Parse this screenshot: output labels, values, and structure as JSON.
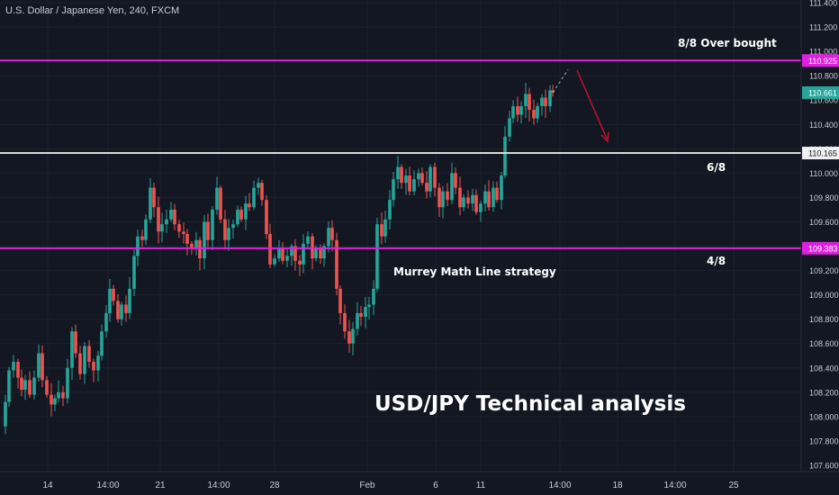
{
  "header": {
    "symbol": "U.S. Dollar / Japanese Yen, 240, FXCM"
  },
  "annotations": {
    "overbought": "8/8  Over bought",
    "six_eighths": "6/8",
    "four_eighths": "4/8",
    "strategy": "Murrey Math Line strategy",
    "title": "USD/JPY Technical analysis"
  },
  "colors": {
    "background": "#131722",
    "up_candle": "#26a69a",
    "down_candle": "#ef5350",
    "murrey_magenta": "#e020e0",
    "murrey_white": "#d8d8d8",
    "arrow": "#c0142c",
    "current_price_badge": "#26a69a"
  },
  "chart_data": {
    "type": "candlestick",
    "title": "USD/JPY Technical analysis",
    "ylim": [
      107.5,
      111.45
    ],
    "y_ticks": [
      "111.400",
      "111.200",
      "111.000",
      "110.800",
      "110.600",
      "110.400",
      "110.200",
      "110.000",
      "109.800",
      "109.600",
      "109.400",
      "109.200",
      "109.000",
      "108.800",
      "108.600",
      "108.400",
      "108.200",
      "108.000",
      "107.800",
      "107.600"
    ],
    "x_ticks": [
      "14",
      "14:00",
      "21",
      "14:00",
      "28",
      "Feb",
      "6",
      "11",
      "14:00",
      "18",
      "14:00",
      "25"
    ],
    "price_badges": {
      "overbought": "110.925",
      "current": "110.661",
      "six_eighths": "110.165",
      "four_eighths": "109.383"
    },
    "murrey_lines": [
      {
        "label": "8/8  Over bought",
        "value": 110.925,
        "color": "#e020e0"
      },
      {
        "label": "6/8",
        "value": 110.165,
        "color": "#d8d8d8"
      },
      {
        "label": "4/8",
        "value": 109.383,
        "color": "#e020e0"
      }
    ],
    "current_price": 110.661,
    "close_path": [
      [
        0,
        107.92
      ],
      [
        6,
        108.12
      ],
      [
        10,
        108.38
      ],
      [
        15,
        108.45
      ],
      [
        20,
        108.32
      ],
      [
        24,
        108.22
      ],
      [
        28,
        108.3
      ],
      [
        33,
        108.18
      ],
      [
        38,
        108.32
      ],
      [
        43,
        108.52
      ],
      [
        47,
        108.3
      ],
      [
        52,
        108.18
      ],
      [
        57,
        108.1
      ],
      [
        61,
        108.15
      ],
      [
        65,
        108.2
      ],
      [
        70,
        108.15
      ],
      [
        75,
        108.4
      ],
      [
        80,
        108.7
      ],
      [
        84,
        108.52
      ],
      [
        89,
        108.35
      ],
      [
        94,
        108.58
      ],
      [
        99,
        108.45
      ],
      [
        104,
        108.38
      ],
      [
        109,
        108.5
      ],
      [
        113,
        108.7
      ],
      [
        118,
        108.85
      ],
      [
        122,
        109.05
      ],
      [
        126,
        108.95
      ],
      [
        131,
        108.8
      ],
      [
        135,
        108.92
      ],
      [
        140,
        108.85
      ],
      [
        144,
        109.05
      ],
      [
        149,
        109.32
      ],
      [
        153,
        109.48
      ],
      [
        158,
        109.45
      ],
      [
        162,
        109.62
      ],
      [
        167,
        109.88
      ],
      [
        171,
        109.72
      ],
      [
        176,
        109.52
      ],
      [
        180,
        109.58
      ],
      [
        185,
        109.62
      ],
      [
        190,
        109.7
      ],
      [
        194,
        109.58
      ],
      [
        199,
        109.52
      ],
      [
        204,
        109.5
      ],
      [
        208,
        109.42
      ],
      [
        213,
        109.38
      ],
      [
        218,
        109.45
      ],
      [
        222,
        109.3
      ],
      [
        227,
        109.6
      ],
      [
        231,
        109.45
      ],
      [
        236,
        109.7
      ],
      [
        241,
        109.88
      ],
      [
        245,
        109.62
      ],
      [
        250,
        109.45
      ],
      [
        254,
        109.55
      ],
      [
        259,
        109.58
      ],
      [
        264,
        109.7
      ],
      [
        268,
        109.62
      ],
      [
        273,
        109.75
      ],
      [
        277,
        109.72
      ],
      [
        282,
        109.88
      ],
      [
        287,
        109.92
      ],
      [
        291,
        109.78
      ],
      [
        296,
        109.5
      ],
      [
        300,
        109.25
      ],
      [
        305,
        109.3
      ],
      [
        310,
        109.38
      ],
      [
        314,
        109.28
      ],
      [
        319,
        109.32
      ],
      [
        324,
        109.4
      ],
      [
        328,
        109.28
      ],
      [
        333,
        109.25
      ],
      [
        337,
        109.42
      ],
      [
        342,
        109.48
      ],
      [
        347,
        109.3
      ],
      [
        351,
        109.38
      ],
      [
        356,
        109.3
      ],
      [
        360,
        109.4
      ],
      [
        365,
        109.55
      ],
      [
        369,
        109.45
      ],
      [
        374,
        109.05
      ],
      [
        378,
        108.85
      ],
      [
        383,
        108.7
      ],
      [
        388,
        108.6
      ],
      [
        392,
        108.72
      ],
      [
        397,
        108.85
      ],
      [
        401,
        108.82
      ],
      [
        406,
        108.9
      ],
      [
        410,
        108.92
      ],
      [
        415,
        109.05
      ],
      [
        419,
        109.58
      ],
      [
        424,
        109.48
      ],
      [
        428,
        109.62
      ],
      [
        433,
        109.78
      ],
      [
        437,
        109.95
      ],
      [
        442,
        110.05
      ],
      [
        446,
        109.92
      ],
      [
        451,
        109.98
      ],
      [
        455,
        109.85
      ],
      [
        460,
        109.95
      ],
      [
        465,
        110.0
      ],
      [
        469,
        109.92
      ],
      [
        474,
        109.85
      ],
      [
        478,
        110.05
      ],
      [
        483,
        109.88
      ],
      [
        488,
        109.72
      ],
      [
        492,
        109.85
      ],
      [
        497,
        109.78
      ],
      [
        502,
        110.0
      ],
      [
        506,
        109.88
      ],
      [
        511,
        109.72
      ],
      [
        515,
        109.8
      ],
      [
        520,
        109.75
      ],
      [
        525,
        109.82
      ],
      [
        529,
        109.68
      ],
      [
        534,
        109.75
      ],
      [
        539,
        109.85
      ],
      [
        543,
        109.72
      ],
      [
        548,
        109.88
      ],
      [
        552,
        109.78
      ],
      [
        557,
        109.98
      ],
      [
        561,
        110.3
      ],
      [
        566,
        110.45
      ],
      [
        570,
        110.55
      ],
      [
        575,
        110.48
      ],
      [
        579,
        110.55
      ],
      [
        584,
        110.65
      ],
      [
        588,
        110.52
      ],
      [
        593,
        110.45
      ],
      [
        597,
        110.55
      ],
      [
        602,
        110.62
      ],
      [
        606,
        110.55
      ],
      [
        611,
        110.68
      ],
      [
        614,
        110.661
      ]
    ]
  }
}
